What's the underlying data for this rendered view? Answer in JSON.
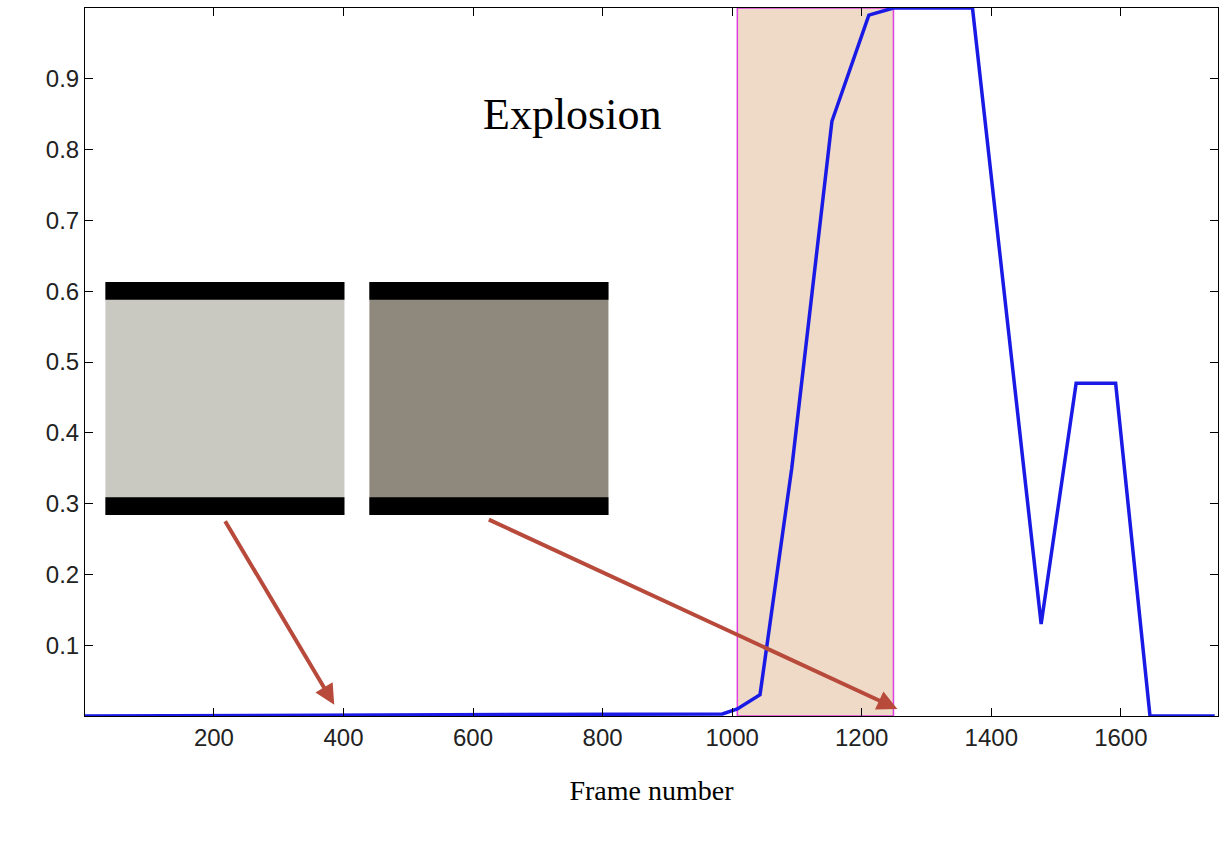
{
  "chart_data": {
    "type": "line",
    "xlabel": "Frame number",
    "annotations": [
      "Explosion"
    ],
    "x": [
      1,
      985,
      1008,
      1043,
      1092,
      1154,
      1211,
      1249,
      1371,
      1477,
      1531,
      1546,
      1592,
      1645,
      1745
    ],
    "values": [
      0,
      0.003,
      0.01,
      0.03,
      0.35,
      0.84,
      0.99,
      1.0,
      1.0,
      0.13,
      0.47,
      0.47,
      0.47,
      0.0,
      0.0
    ],
    "color": "#1a1ae6",
    "shaded_region": [
      1008,
      1249
    ],
    "xlim": [
      1,
      1750
    ],
    "xticks": [
      200,
      400,
      600,
      800,
      1000,
      1200,
      1400,
      1600
    ],
    "ylim": [
      0,
      1
    ],
    "yticks": [
      0.1,
      0.2,
      0.3,
      0.4,
      0.5,
      0.6,
      0.7,
      0.8,
      0.9
    ],
    "grid": false
  }
}
